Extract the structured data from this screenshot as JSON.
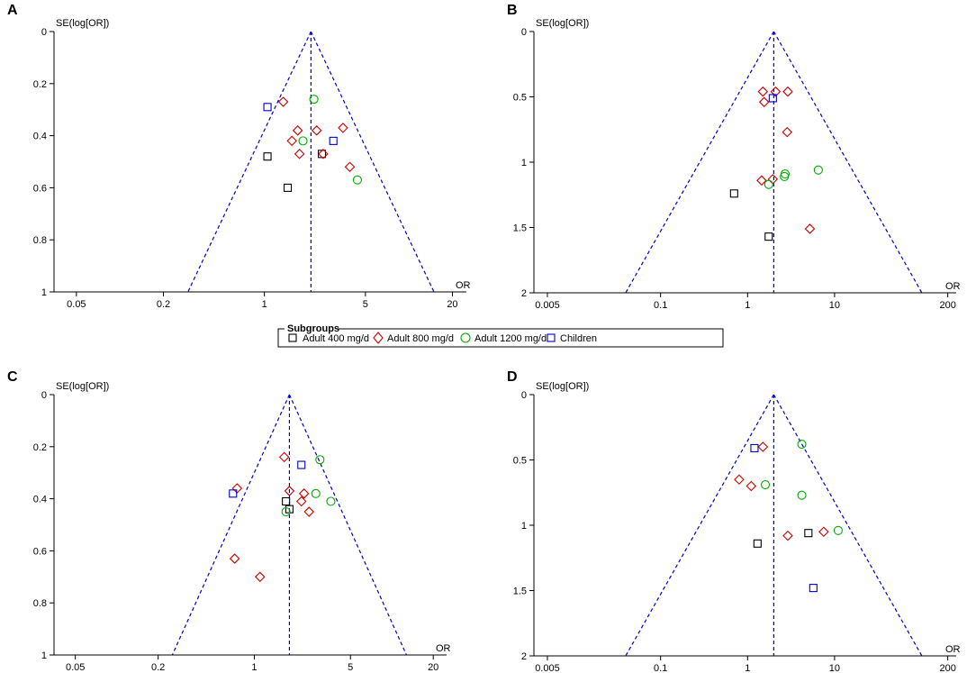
{
  "legend": {
    "title": "Subgroups",
    "items": [
      {
        "label": "Adult 400 mg/d",
        "marker": "square",
        "color": "#000000"
      },
      {
        "label": "Adult 800 mg/d",
        "marker": "diamond",
        "color": "#cc0000"
      },
      {
        "label": "Adult 1200 mg/d",
        "marker": "circle",
        "color": "#00aa00"
      },
      {
        "label": "Children",
        "marker": "square",
        "color": "#0000cc"
      }
    ]
  },
  "colors": {
    "Adult 400 mg/d": "#000000",
    "Adult 800 mg/d": "#cc0000",
    "Adult 1200 mg/d": "#00aa00",
    "Children": "#0000cc",
    "funnel": "#0000cc",
    "axis": "#000000"
  },
  "chart_data": [
    {
      "type": "scatter",
      "panel": "A",
      "title": "",
      "xlabel": "OR",
      "ylabel": "SE(log[OR])",
      "xscale": "log",
      "xlim": [
        0.035,
        25
      ],
      "xticks": [
        0.05,
        0.2,
        1,
        5,
        20
      ],
      "xtick_labels": [
        "0.05",
        "0.2",
        "1",
        "5",
        "20"
      ],
      "ylim": [
        0,
        1
      ],
      "yticks": [
        0,
        0.2,
        0.4,
        0.6,
        0.8,
        1
      ],
      "ytick_labels": [
        "0",
        "0.2",
        "0.4",
        "0.6",
        "0.8",
        "1"
      ],
      "pooled_or": 2.1,
      "series": [
        {
          "name": "Adult 400 mg/d",
          "points": [
            [
              1.05,
              0.48
            ],
            [
              1.45,
              0.6
            ],
            [
              2.5,
              0.47
            ]
          ]
        },
        {
          "name": "Adult 800 mg/d",
          "points": [
            [
              1.35,
              0.27
            ],
            [
              1.7,
              0.38
            ],
            [
              1.55,
              0.42
            ],
            [
              2.3,
              0.38
            ],
            [
              3.5,
              0.37
            ],
            [
              1.75,
              0.47
            ],
            [
              2.55,
              0.47
            ],
            [
              3.9,
              0.52
            ]
          ]
        },
        {
          "name": "Adult 1200 mg/d",
          "points": [
            [
              2.2,
              0.26
            ],
            [
              1.85,
              0.42
            ],
            [
              4.4,
              0.57
            ]
          ]
        },
        {
          "name": "Children",
          "points": [
            [
              1.05,
              0.29
            ],
            [
              3.0,
              0.42
            ]
          ]
        }
      ]
    },
    {
      "type": "scatter",
      "panel": "B",
      "title": "",
      "xlabel": "OR",
      "ylabel": "SE(log[OR])",
      "xscale": "log",
      "xlim": [
        0.0035,
        250
      ],
      "xticks": [
        0.005,
        0.1,
        1,
        10,
        200
      ],
      "xtick_labels": [
        "0.005",
        "0.1",
        "1",
        "10",
        "200"
      ],
      "ylim": [
        0,
        2
      ],
      "yticks": [
        0,
        0.5,
        1,
        1.5,
        2
      ],
      "ytick_labels": [
        "0",
        "0.5",
        "1",
        "1.5",
        "2"
      ],
      "pooled_or": 2.0,
      "series": [
        {
          "name": "Adult 400 mg/d",
          "points": [
            [
              0.7,
              1.24
            ],
            [
              1.75,
              1.57
            ]
          ]
        },
        {
          "name": "Adult 800 mg/d",
          "points": [
            [
              1.5,
              0.46
            ],
            [
              2.1,
              0.46
            ],
            [
              2.9,
              0.46
            ],
            [
              1.55,
              0.54
            ],
            [
              2.85,
              0.77
            ],
            [
              1.45,
              1.14
            ],
            [
              1.95,
              1.13
            ],
            [
              5.2,
              1.51
            ]
          ]
        },
        {
          "name": "Adult 1200 mg/d",
          "points": [
            [
              1.75,
              1.17
            ],
            [
              2.7,
              1.09
            ],
            [
              2.65,
              1.11
            ],
            [
              6.5,
              1.06
            ]
          ]
        },
        {
          "name": "Children",
          "points": [
            [
              1.95,
              0.51
            ]
          ]
        }
      ]
    },
    {
      "type": "scatter",
      "panel": "C",
      "title": "",
      "xlabel": "OR",
      "ylabel": "SE(log[OR])",
      "xscale": "log",
      "xlim": [
        0.035,
        25
      ],
      "xticks": [
        0.05,
        0.2,
        1,
        5,
        20
      ],
      "xtick_labels": [
        "0.05",
        "0.2",
        "1",
        "5",
        "20"
      ],
      "ylim": [
        0,
        1
      ],
      "yticks": [
        0,
        0.2,
        0.4,
        0.6,
        0.8,
        1
      ],
      "ytick_labels": [
        "0",
        "0.2",
        "0.4",
        "0.6",
        "0.8",
        "1"
      ],
      "pooled_or": 1.8,
      "series": [
        {
          "name": "Adult 400 mg/d",
          "points": [
            [
              1.7,
              0.41
            ],
            [
              1.8,
              0.44
            ]
          ]
        },
        {
          "name": "Adult 800 mg/d",
          "points": [
            [
              1.65,
              0.24
            ],
            [
              0.75,
              0.36
            ],
            [
              1.8,
              0.37
            ],
            [
              2.3,
              0.38
            ],
            [
              2.2,
              0.41
            ],
            [
              2.5,
              0.45
            ],
            [
              0.72,
              0.63
            ],
            [
              1.1,
              0.7
            ]
          ]
        },
        {
          "name": "Adult 1200 mg/d",
          "points": [
            [
              3.0,
              0.25
            ],
            [
              2.8,
              0.38
            ],
            [
              3.6,
              0.41
            ],
            [
              1.7,
              0.45
            ]
          ]
        },
        {
          "name": "Children",
          "points": [
            [
              2.2,
              0.27
            ],
            [
              0.7,
              0.38
            ]
          ]
        }
      ]
    },
    {
      "type": "scatter",
      "panel": "D",
      "title": "",
      "xlabel": "OR",
      "ylabel": "SE(log[OR])",
      "xscale": "log",
      "xlim": [
        0.0035,
        250
      ],
      "xticks": [
        0.005,
        0.1,
        1,
        10,
        200
      ],
      "xtick_labels": [
        "0.005",
        "0.1",
        "1",
        "10",
        "200"
      ],
      "ylim": [
        0,
        2
      ],
      "yticks": [
        0,
        0.5,
        1,
        1.5,
        2
      ],
      "ytick_labels": [
        "0",
        "0.5",
        "1",
        "1.5",
        "2"
      ],
      "pooled_or": 2.0,
      "series": [
        {
          "name": "Adult 400 mg/d",
          "points": [
            [
              1.3,
              1.14
            ],
            [
              5.0,
              1.06
            ]
          ]
        },
        {
          "name": "Adult 800 mg/d",
          "points": [
            [
              1.5,
              0.4
            ],
            [
              0.8,
              0.65
            ],
            [
              1.1,
              0.7
            ],
            [
              2.9,
              1.08
            ],
            [
              7.5,
              1.05
            ]
          ]
        },
        {
          "name": "Adult 1200 mg/d",
          "points": [
            [
              4.2,
              0.38
            ],
            [
              1.6,
              0.69
            ],
            [
              4.2,
              0.77
            ],
            [
              11.0,
              1.04
            ]
          ]
        },
        {
          "name": "Children",
          "points": [
            [
              1.2,
              0.41
            ],
            [
              5.7,
              1.48
            ]
          ]
        }
      ]
    }
  ]
}
